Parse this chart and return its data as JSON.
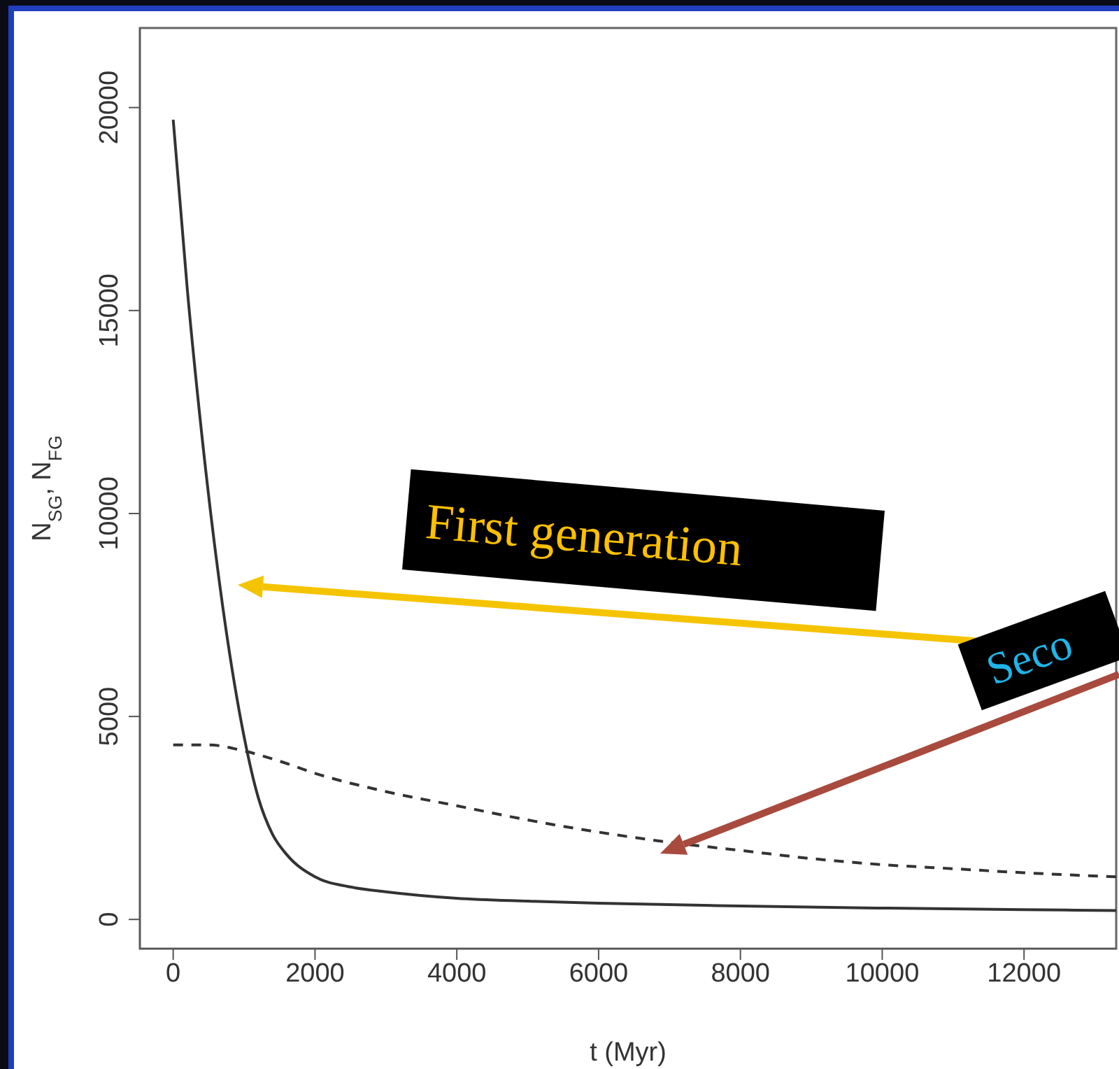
{
  "chart_data": {
    "type": "line",
    "xlabel": "t (Myr)",
    "ylabel": "N$_{SG}$, N$_{FG}$",
    "xlim": [
      -470,
      13300
    ],
    "ylim": [
      -720,
      21960
    ],
    "xticks": [
      0,
      2000,
      4000,
      6000,
      8000,
      10000,
      12000
    ],
    "yticks": [
      0,
      5000,
      10000,
      15000,
      20000
    ],
    "marker": "none",
    "series": [
      {
        "color": "#333333",
        "line_style": "solid",
        "x": [
          0,
          200,
          400,
          600,
          800,
          1000,
          1200,
          1400,
          1600,
          2000,
          2500,
          3000,
          4000,
          5000,
          6000,
          8000,
          10000,
          12000,
          13300
        ],
        "values": [
          19700,
          15500,
          12000,
          9000,
          6500,
          4500,
          3000,
          2100,
          1600,
          1050,
          800,
          680,
          520,
          450,
          400,
          330,
          280,
          240,
          220
        ]
      },
      {
        "color": "#333333",
        "line_style": "dashed",
        "x": [
          0,
          500,
          1000,
          1500,
          2000,
          3000,
          4000,
          5000,
          6000,
          7000,
          8000,
          9000,
          10000,
          11000,
          12000,
          13300
        ],
        "values": [
          4300,
          4300,
          4150,
          3900,
          3600,
          3150,
          2800,
          2450,
          2150,
          1900,
          1700,
          1500,
          1350,
          1250,
          1150,
          1050
        ]
      }
    ],
    "annotations": [
      "First generation",
      "Seco"
    ]
  }
}
